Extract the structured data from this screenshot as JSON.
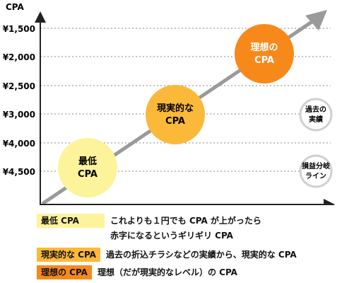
{
  "axis": {
    "y_title": "CPA",
    "y_ticks": [
      "¥1,500",
      "¥2,000",
      "¥2,500",
      "¥3,000",
      "¥4,000",
      "¥4,500"
    ]
  },
  "bubbles": [
    {
      "line1": "最低",
      "line2": "CPA",
      "color": "#fdf39b"
    },
    {
      "line1": "現実的な",
      "line2": "CPA",
      "color": "#fbb93a"
    },
    {
      "line1": "理想の",
      "line2": "CPA",
      "color": "#f7891b"
    }
  ],
  "markers": [
    {
      "line1": "過去の",
      "line2": "実績"
    },
    {
      "line1": "損益分岐",
      "line2": "ライン"
    }
  ],
  "colors": {
    "arrow": "#9a9a9a",
    "axis": "#222222",
    "grid": "#888888",
    "marker_ring": "#d0d0d0"
  },
  "legend": [
    {
      "label": "最低 CPA",
      "color": "#fdf39b",
      "lines": [
        "これよりも１円でも CPA が上がったら",
        "赤字になるというギリギリ CPA"
      ]
    },
    {
      "label": "現実的な CPA",
      "color": "#fbb93a",
      "lines": [
        "過去の折込チラシなどの実績から、現実的な CPA"
      ]
    },
    {
      "label": "理想の CPA",
      "color": "#f7891b",
      "lines": [
        "理想（だが現実的なレベル）の CPA"
      ]
    }
  ]
}
